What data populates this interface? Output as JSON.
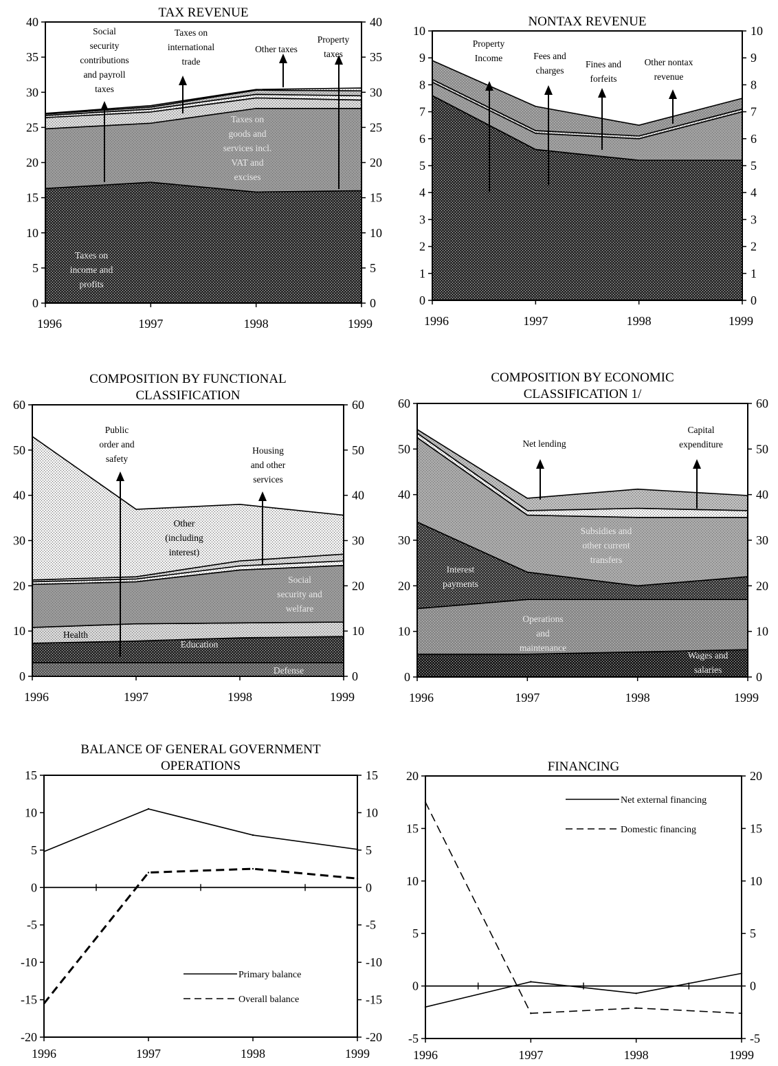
{
  "chart_data": [
    {
      "id": "tax",
      "type": "area",
      "title": [
        "TAX REVENUE"
      ],
      "x": [
        1996,
        1997,
        1998,
        1999
      ],
      "ylim": [
        0,
        40
      ],
      "yticks": [
        0,
        5,
        10,
        15,
        20,
        25,
        30,
        35,
        40
      ],
      "grid": false,
      "series": [
        {
          "values": [
            16.3,
            17.2,
            15.8,
            16.0
          ],
          "color": "#2e2e2e",
          "label": [
            "Taxes on",
            "income and",
            "profits"
          ]
        },
        {
          "values": [
            8.5,
            8.4,
            11.9,
            11.7
          ],
          "color": "#9a9a9a",
          "label": [
            "Taxes on",
            "goods and",
            "services incl.",
            "VAT and",
            "excises"
          ]
        },
        {
          "values": [
            1.6,
            1.6,
            1.5,
            1.2
          ],
          "color": "#dadada",
          "label": [
            "Social",
            "security",
            "contributions",
            "and payroll",
            "taxes"
          ]
        },
        {
          "values": [
            0.3,
            0.4,
            0.5,
            0.6
          ],
          "color": "#fafafa",
          "label": [
            "Taxes on",
            "international",
            "trade"
          ]
        },
        {
          "values": [
            0.2,
            0.3,
            0.6,
            0.7
          ],
          "color": "#c4c4c4",
          "label": [
            "Other taxes"
          ]
        },
        {
          "values": [
            0.1,
            0.2,
            0.1,
            0.4
          ],
          "color": "#ffffff",
          "label": [
            "Property",
            "taxes"
          ]
        }
      ]
    },
    {
      "id": "nontax",
      "type": "area",
      "title": [
        "NONTAX REVENUE"
      ],
      "x": [
        1996,
        1997,
        1998,
        1999
      ],
      "ylim": [
        0,
        10
      ],
      "yticks": [
        0,
        1,
        2,
        3,
        4,
        5,
        6,
        7,
        8,
        9,
        10
      ],
      "grid": false,
      "series": [
        {
          "values": [
            7.6,
            5.6,
            5.2,
            5.2
          ],
          "color": "#2e2e2e",
          "label": [
            "Property",
            "Income"
          ]
        },
        {
          "values": [
            0.5,
            0.6,
            0.8,
            1.8
          ],
          "color": "#a0a0a0",
          "label": [
            "Fees and",
            "charges"
          ]
        },
        {
          "values": [
            0.1,
            0.1,
            0.1,
            0.1
          ],
          "color": "#e6e6e6",
          "label": [
            "Fines and",
            "forfeits"
          ]
        },
        {
          "values": [
            0.7,
            0.9,
            0.4,
            0.4
          ],
          "color": "#8e8e8e",
          "label": [
            "Other nontax",
            "revenue"
          ]
        }
      ]
    },
    {
      "id": "functional",
      "type": "area",
      "title": [
        "COMPOSITION BY FUNCTIONAL",
        "CLASSIFICATION"
      ],
      "x": [
        1996,
        1997,
        1998,
        1999
      ],
      "ylim": [
        0,
        60
      ],
      "yticks": [
        0,
        10,
        20,
        30,
        40,
        50,
        60
      ],
      "grid": false,
      "series": [
        {
          "values": [
            3.0,
            3.0,
            3.0,
            3.0
          ],
          "color": "#5e5e5e",
          "label": [
            "Defense"
          ]
        },
        {
          "values": [
            4.3,
            4.8,
            5.5,
            5.8
          ],
          "color": "#2c2c2c",
          "label": [
            "Education"
          ]
        },
        {
          "values": [
            3.5,
            3.8,
            3.3,
            3.2
          ],
          "color": "#d6d6d6",
          "label": [
            "Health"
          ]
        },
        {
          "values": [
            9.5,
            9.3,
            11.7,
            12.5
          ],
          "color": "#9a9a9a",
          "label": [
            "Social",
            "security and",
            "welfare"
          ]
        },
        {
          "values": [
            0.6,
            0.6,
            0.9,
            1.0
          ],
          "color": "#ffffff",
          "label": [
            "Public",
            "order and",
            "safety"
          ]
        },
        {
          "values": [
            0.4,
            0.5,
            1.1,
            1.5
          ],
          "color": "#dcdcdc",
          "label": [
            "Housing",
            "and other",
            "services"
          ]
        },
        {
          "values": [
            31.7,
            14.9,
            12.5,
            8.6
          ],
          "color": "#eeeeee",
          "label": [
            "Other",
            "(including",
            "interest)"
          ]
        }
      ]
    },
    {
      "id": "economic",
      "type": "area",
      "title": [
        "COMPOSITION BY ECONOMIC",
        "CLASSIFICATION 1/"
      ],
      "x": [
        1996,
        1997,
        1998,
        1999
      ],
      "ylim": [
        0,
        60
      ],
      "yticks": [
        0,
        10,
        20,
        30,
        40,
        50,
        60
      ],
      "grid": false,
      "series": [
        {
          "values": [
            5.0,
            5.0,
            5.5,
            6.0
          ],
          "color": "#1e1e1e",
          "label": [
            "Wages and",
            "salaries"
          ]
        },
        {
          "values": [
            10.0,
            12.0,
            11.5,
            11.0
          ],
          "color": "#888888",
          "label": [
            "Operations",
            "and",
            "maintenance"
          ]
        },
        {
          "values": [
            19.0,
            6.0,
            3.0,
            5.0
          ],
          "color": "#383838",
          "label": [
            "Interest",
            "payments"
          ]
        },
        {
          "values": [
            18.5,
            12.5,
            15.0,
            13.0
          ],
          "color": "#aaaaaa",
          "label": [
            "Subsidies and",
            "other current",
            "transfers"
          ]
        },
        {
          "values": [
            1.0,
            1.0,
            2.0,
            1.5
          ],
          "color": "#f2f2f2",
          "label": [
            "Net lending"
          ]
        },
        {
          "values": [
            0.8,
            2.7,
            4.2,
            3.3
          ],
          "color": "#bdbdbd",
          "label": [
            "Capital",
            "expenditure"
          ]
        }
      ]
    },
    {
      "id": "balance",
      "type": "line",
      "title": [
        "BALANCE OF GENERAL GOVERNMENT",
        "OPERATIONS"
      ],
      "x": [
        1996,
        1997,
        1998,
        1999
      ],
      "ylim": [
        -20,
        15
      ],
      "yticks": [
        -20,
        -15,
        -10,
        -5,
        0,
        5,
        10,
        15
      ],
      "grid": false,
      "series": [
        {
          "name": "Primary balance",
          "values": [
            4.8,
            10.5,
            7.0,
            5.1
          ]
        },
        {
          "name": "Overall balance",
          "values": [
            -15.5,
            2.0,
            2.5,
            1.2
          ]
        }
      ]
    },
    {
      "id": "financing",
      "type": "line",
      "title": [
        "FINANCING"
      ],
      "x": [
        1996,
        1997,
        1998,
        1999
      ],
      "ylim": [
        -5,
        20
      ],
      "yticks": [
        -5,
        0,
        5,
        10,
        15,
        20
      ],
      "grid": false,
      "series": [
        {
          "name": "Net external financing",
          "values": [
            -2.0,
            0.4,
            -0.7,
            1.2
          ]
        },
        {
          "name": "Domestic financing",
          "values": [
            17.5,
            -2.6,
            -2.1,
            -2.6
          ]
        }
      ]
    }
  ]
}
